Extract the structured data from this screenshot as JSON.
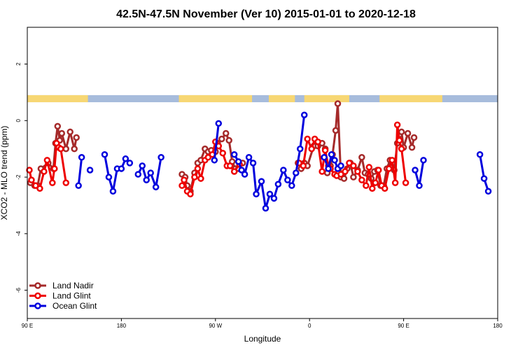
{
  "chart_data": {
    "type": "line",
    "title": "42.5N-47.5N November (Ver 10)   2015-01-01 to 2020-12-18",
    "xlabel": "Longitude",
    "ylabel": "XCO2 - MLO trend (ppm)",
    "xlim": [
      90,
      540
    ],
    "ylim": [
      -7,
      3.3
    ],
    "x_ticks": [
      {
        "value": 90,
        "label": "90 E"
      },
      {
        "value": 180,
        "label": "180"
      },
      {
        "value": 270,
        "label": "90 W"
      },
      {
        "value": 360,
        "label": "0"
      },
      {
        "value": 450,
        "label": "90 E"
      },
      {
        "value": 540,
        "label": "180"
      }
    ],
    "y_ticks": [
      {
        "value": 2,
        "label": "2"
      },
      {
        "value": 0,
        "label": "0"
      },
      {
        "value": -2,
        "label": "-2"
      },
      {
        "value": -4,
        "label": "-4"
      },
      {
        "value": -6,
        "label": "-6"
      }
    ],
    "legend_position": "bottom-left",
    "land_mask": {
      "y_range": [
        0.65,
        0.9
      ],
      "land_color": "#f7d774",
      "ocean_color": "#a7bcdc",
      "land_intervals": [
        [
          90,
          148
        ],
        [
          235,
          305
        ],
        [
          321,
          346
        ],
        [
          355,
          398
        ],
        [
          427,
          487
        ]
      ]
    },
    "series": [
      {
        "name": "Land Nadir",
        "color": "#a52a2a",
        "points": [
          [
            93,
            -2.2
          ],
          [
            97,
            -2.3
          ],
          [
            100,
            -2.3
          ],
          [
            103,
            -1.7
          ],
          [
            110,
            -1.5
          ],
          [
            115,
            -1.7
          ],
          [
            117,
            -0.8
          ],
          [
            119,
            -0.2
          ],
          [
            121,
            -0.7
          ],
          [
            123,
            -0.45
          ],
          [
            127,
            -1.0
          ],
          [
            131,
            -0.4
          ],
          [
            135,
            -1.0
          ],
          [
            137,
            -0.6
          ],
          null,
          [
            238,
            -1.9
          ],
          [
            241,
            -2.0
          ],
          [
            243,
            -2.3
          ],
          [
            246,
            -2.5
          ],
          [
            250,
            -1.85
          ],
          [
            253,
            -1.5
          ],
          [
            256,
            -1.4
          ],
          [
            260,
            -1.0
          ],
          [
            263,
            -1.1
          ],
          [
            266,
            -1.05
          ],
          [
            270,
            -1.1
          ],
          [
            272,
            -0.8
          ],
          [
            276,
            -0.65
          ],
          [
            280,
            -0.45
          ],
          [
            283,
            -0.7
          ],
          [
            286,
            -1.45
          ],
          [
            289,
            -1.7
          ],
          [
            292,
            -1.7
          ],
          [
            296,
            -1.5
          ],
          null,
          [
            349,
            -1.5
          ],
          [
            352,
            -1.7
          ],
          [
            355,
            -1.5
          ],
          [
            358,
            -1.6
          ],
          [
            364,
            -0.9
          ],
          [
            368,
            -0.9
          ],
          [
            372,
            -0.8
          ],
          [
            375,
            -1.0
          ],
          [
            377,
            -1.85
          ],
          [
            380,
            -1.6
          ],
          [
            382,
            -1.2
          ],
          [
            385,
            -0.35
          ],
          [
            387,
            0.6
          ],
          [
            390,
            -2.0
          ],
          [
            393,
            -2.05
          ],
          [
            396,
            -1.7
          ],
          [
            399,
            -1.5
          ],
          [
            402,
            -2.0
          ],
          [
            406,
            -1.75
          ],
          [
            410,
            -1.3
          ],
          [
            413,
            -1.85
          ],
          [
            416,
            -1.9
          ],
          [
            419,
            -2.05
          ],
          [
            422,
            -1.8
          ],
          [
            425,
            -1.75
          ],
          [
            428,
            -2.3
          ],
          [
            431,
            -2.3
          ],
          [
            434,
            -1.7
          ],
          [
            437,
            -1.4
          ],
          [
            441,
            -1.75
          ],
          [
            444,
            -0.8
          ],
          [
            446,
            -0.5
          ],
          [
            448,
            -0.4
          ],
          [
            450,
            -0.95
          ],
          [
            454,
            -0.45
          ],
          [
            458,
            -0.95
          ],
          [
            460,
            -0.6
          ]
        ]
      },
      {
        "name": "Land Glint",
        "color": "#ee0000",
        "points": [
          [
            92,
            -1.75
          ],
          [
            94,
            -2.1
          ],
          [
            98,
            -2.3
          ],
          [
            102,
            -2.4
          ],
          [
            106,
            -1.8
          ],
          [
            109,
            -1.4
          ],
          [
            114,
            -2.2
          ],
          [
            116,
            -1.7
          ],
          [
            118,
            -0.8
          ],
          [
            120,
            -0.95
          ],
          [
            122,
            -1.0
          ],
          [
            127,
            -2.2
          ],
          null,
          [
            238,
            -2.3
          ],
          [
            240,
            -2.1
          ],
          [
            243,
            -2.5
          ],
          [
            246,
            -2.6
          ],
          [
            250,
            -2.0
          ],
          [
            253,
            -1.7
          ],
          [
            256,
            -2.05
          ],
          [
            260,
            -1.4
          ],
          [
            263,
            -1.3
          ],
          [
            267,
            -1.2
          ],
          [
            270,
            -0.75
          ],
          [
            273,
            -0.9
          ],
          [
            277,
            -1.15
          ],
          [
            281,
            -1.6
          ],
          [
            284,
            -1.6
          ],
          [
            288,
            -1.8
          ],
          [
            293,
            -1.55
          ],
          null,
          [
            350,
            -1.5
          ],
          [
            354,
            -1.6
          ],
          [
            358,
            -0.65
          ],
          [
            362,
            -1.0
          ],
          [
            365,
            -0.65
          ],
          [
            368,
            -0.75
          ],
          [
            372,
            -1.8
          ],
          [
            375,
            -1.05
          ],
          [
            378,
            -1.6
          ],
          [
            380,
            -1.7
          ],
          [
            384,
            -1.9
          ],
          [
            386,
            -1.95
          ],
          [
            390,
            -1.9
          ],
          [
            394,
            -1.8
          ],
          [
            398,
            -1.5
          ],
          [
            402,
            -1.6
          ],
          [
            406,
            -1.8
          ],
          [
            410,
            -2.1
          ],
          [
            414,
            -2.3
          ],
          [
            417,
            -1.65
          ],
          [
            420,
            -2.4
          ],
          [
            423,
            -2.2
          ],
          [
            426,
            -1.75
          ],
          [
            429,
            -2.3
          ],
          [
            432,
            -2.4
          ],
          [
            436,
            -1.7
          ],
          [
            439,
            -1.4
          ],
          [
            442,
            -2.2
          ],
          [
            444,
            -0.15
          ],
          [
            446,
            -0.7
          ],
          [
            448,
            -1.0
          ],
          [
            452,
            -2.2
          ]
        ]
      },
      {
        "name": "Ocean Glint",
        "color": "#0000dd",
        "points": [
          [
            139,
            -2.3
          ],
          [
            142,
            -1.3
          ],
          null,
          [
            164,
            -1.2
          ],
          [
            168,
            -2.0
          ],
          [
            172,
            -2.5
          ],
          [
            176,
            -1.7
          ],
          [
            180,
            -1.7
          ],
          [
            184,
            -1.35
          ],
          [
            188,
            -1.5
          ],
          null,
          [
            196,
            -1.9
          ],
          [
            200,
            -1.6
          ],
          [
            204,
            -2.1
          ],
          [
            208,
            -1.85
          ],
          [
            213,
            -2.35
          ],
          [
            218,
            -1.3
          ],
          null,
          [
            269,
            -1.4
          ],
          [
            273,
            -0.1
          ],
          null,
          [
            288,
            -1.2
          ],
          [
            292,
            -1.45
          ],
          [
            295,
            -1.75
          ],
          [
            298,
            -1.9
          ],
          [
            302,
            -1.3
          ],
          [
            306,
            -1.5
          ],
          [
            309,
            -2.6
          ],
          [
            314,
            -2.15
          ],
          [
            318,
            -3.1
          ],
          [
            322,
            -2.6
          ],
          [
            326,
            -2.75
          ],
          [
            330,
            -2.25
          ],
          [
            335,
            -1.75
          ],
          [
            339,
            -2.1
          ],
          [
            343,
            -2.3
          ],
          [
            347,
            -1.85
          ],
          [
            351,
            -1.0
          ],
          [
            355,
            0.2
          ],
          null,
          [
            374,
            -1.3
          ],
          [
            378,
            -1.7
          ],
          [
            381,
            -1.2
          ],
          [
            384,
            -1.4
          ],
          [
            387,
            -1.7
          ],
          [
            390,
            -1.6
          ],
          null,
          [
            150,
            -1.75
          ],
          null,
          [
            461,
            -1.75
          ],
          [
            465,
            -2.3
          ],
          [
            469,
            -1.4
          ],
          null,
          [
            523,
            -1.2
          ],
          [
            527,
            -2.05
          ],
          [
            531,
            -2.5
          ]
        ]
      }
    ]
  }
}
